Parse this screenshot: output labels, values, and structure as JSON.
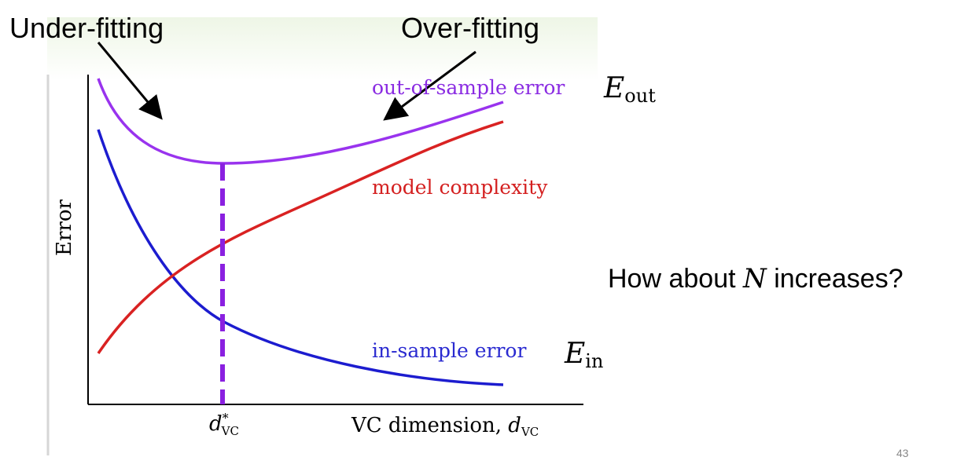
{
  "slide": {
    "annotations": {
      "under_fitting": "Under-fitting",
      "over_fitting": "Over-fitting"
    },
    "figure": {
      "y_axis_label": "Error",
      "x_axis_label": {
        "text": "VC dimension,",
        "symbol": "d",
        "subscript": "VC"
      },
      "optimum_label": {
        "symbol": "d",
        "superscript": "*",
        "subscript": "VC"
      },
      "curves": {
        "out_of_sample": {
          "label": "out-of-sample error",
          "symbol": "E",
          "subscript": "out"
        },
        "model_complexity": {
          "label": "model complexity"
        },
        "in_sample": {
          "label": "in-sample error",
          "symbol": "E",
          "subscript": "in"
        }
      }
    },
    "question": {
      "before": "How about",
      "variable": "N",
      "after": "increases?"
    },
    "page_number": "43"
  }
}
